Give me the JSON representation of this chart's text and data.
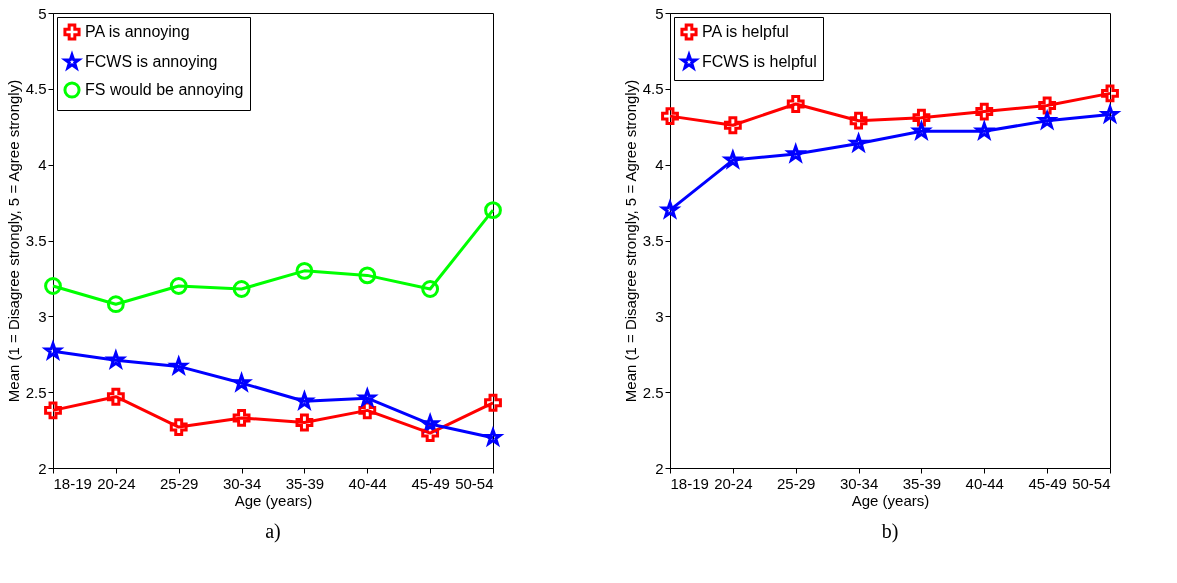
{
  "chart_data": [
    {
      "type": "line",
      "categories": [
        "18-19",
        "20-24",
        "25-29",
        "30-34",
        "35-39",
        "40-44",
        "45-49",
        "50-54"
      ],
      "xlabel": "Age (years)",
      "ylabel": "Mean (1 = Disagree strongly, 5 = Agree strongly)",
      "ylim": [
        2,
        5
      ],
      "yticks": [
        2,
        2.5,
        3,
        3.5,
        4,
        4.5,
        5
      ],
      "legend": "top left",
      "annotations": [
        "a)"
      ],
      "series": [
        {
          "name": "PA is annoying",
          "color": "#ff0000",
          "marker": "cross",
          "values": [
            2.38,
            2.47,
            2.27,
            2.33,
            2.3,
            2.38,
            2.23,
            2.43
          ]
        },
        {
          "name": "FCWS is annoying",
          "color": "#0000ff",
          "marker": "star",
          "values": [
            2.77,
            2.71,
            2.67,
            2.56,
            2.44,
            2.46,
            2.29,
            2.2
          ]
        },
        {
          "name": "FS would be annoying",
          "color": "#00ff00",
          "marker": "circle",
          "values": [
            3.2,
            3.08,
            3.2,
            3.18,
            3.3,
            3.27,
            3.18,
            3.7
          ]
        }
      ]
    },
    {
      "type": "line",
      "categories": [
        "18-19",
        "20-24",
        "25-29",
        "30-34",
        "35-39",
        "40-44",
        "45-49",
        "50-54"
      ],
      "xlabel": "Age (years)",
      "ylabel": "Mean (1 = Disagree strongly, 5 = Agree strongly)",
      "ylim": [
        2,
        5
      ],
      "yticks": [
        2,
        2.5,
        3,
        3.5,
        4,
        4.5,
        5
      ],
      "legend": "top left",
      "annotations": [
        "b)"
      ],
      "series": [
        {
          "name": "PA is helpful",
          "color": "#ff0000",
          "marker": "cross",
          "values": [
            4.32,
            4.26,
            4.4,
            4.29,
            4.31,
            4.35,
            4.39,
            4.47
          ]
        },
        {
          "name": "FCWS is helpful",
          "color": "#0000ff",
          "marker": "star",
          "values": [
            3.7,
            4.03,
            4.07,
            4.14,
            4.22,
            4.22,
            4.29,
            4.33
          ]
        }
      ]
    }
  ]
}
